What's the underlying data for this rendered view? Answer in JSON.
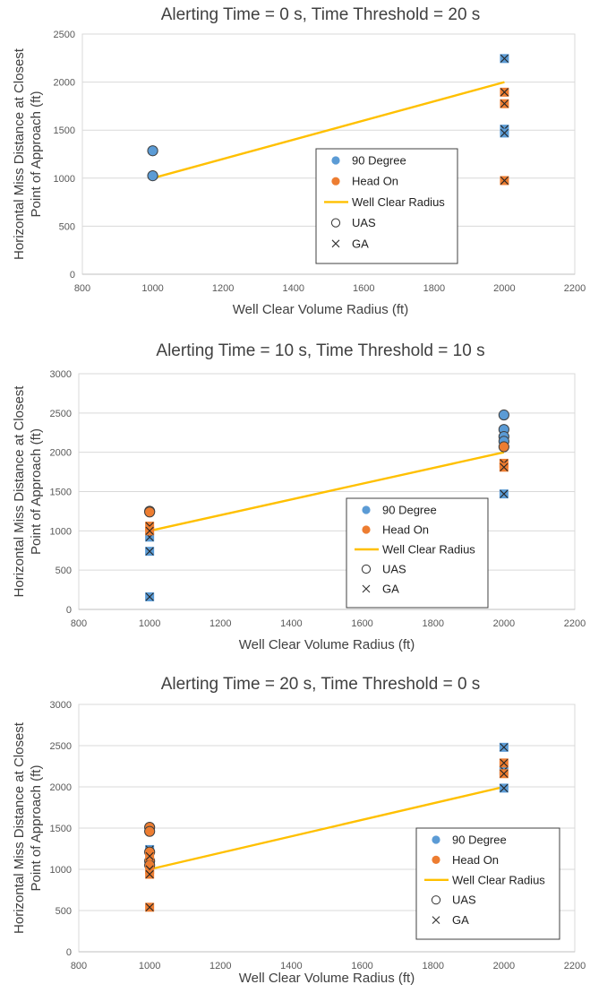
{
  "colors": {
    "ninety_degree": "#5B9BD5",
    "head_on": "#ED7D31",
    "well_clear": "#FFC000",
    "grid": "#D9D9D9",
    "marker_edge": "#404040"
  },
  "chart_data": [
    {
      "type": "scatter",
      "title": "Alerting Time = 0 s, Time Threshold = 20 s",
      "xlabel": "Well Clear Volume Radius (ft)",
      "ylabel": [
        "Horizontal Miss Distance at Closest",
        "Point of Approach (ft)"
      ],
      "xlim": [
        800,
        2200
      ],
      "ylim": [
        0,
        2500
      ],
      "xticks": [
        800,
        1000,
        1200,
        1400,
        1600,
        1800,
        2000,
        2200
      ],
      "yticks": [
        0,
        500,
        1000,
        1500,
        2000,
        2500
      ],
      "grid": true,
      "legend_position": "center-right",
      "legend": [
        "90 Degree",
        "Head On",
        "Well Clear Radius",
        "UAS",
        "GA"
      ],
      "series": [
        {
          "name": "90 Degree",
          "marker": "UAS",
          "points": [
            [
              1000,
              1285
            ],
            [
              1000,
              1025
            ]
          ]
        },
        {
          "name": "90 Degree",
          "marker": "GA",
          "points": [
            [
              2000,
              2245
            ],
            [
              2000,
              1510
            ],
            [
              2000,
              1470
            ]
          ]
        },
        {
          "name": "Head On",
          "marker": "GA",
          "points": [
            [
              2000,
              1895
            ],
            [
              2000,
              1775
            ],
            [
              2000,
              975
            ]
          ]
        },
        {
          "name": "Well Clear Radius",
          "line": [
            [
              1000,
              1000
            ],
            [
              2000,
              2000
            ]
          ]
        }
      ]
    },
    {
      "type": "scatter",
      "title": "Alerting Time = 10 s, Time Threshold = 10 s",
      "xlabel": "Well Clear Volume Radius (ft)",
      "ylabel": [
        "Horizontal Miss Distance at Closest",
        "Point of Approach (ft)"
      ],
      "xlim": [
        800,
        2200
      ],
      "ylim": [
        0,
        3000
      ],
      "xticks": [
        800,
        1000,
        1200,
        1400,
        1600,
        1800,
        2000,
        2200
      ],
      "yticks": [
        0,
        500,
        1000,
        1500,
        2000,
        2500,
        3000
      ],
      "grid": true,
      "legend_position": "center-right",
      "legend": [
        "90 Degree",
        "Head On",
        "Well Clear Radius",
        "UAS",
        "GA"
      ],
      "series": [
        {
          "name": "90 Degree",
          "marker": "UAS",
          "points": [
            [
              2000,
              2475
            ],
            [
              2000,
              2290
            ],
            [
              2000,
              2200
            ],
            [
              2000,
              2140
            ]
          ]
        },
        {
          "name": "90 Degree",
          "marker": "GA",
          "points": [
            [
              1000,
              920
            ],
            [
              1000,
              740
            ],
            [
              1000,
              160
            ],
            [
              2000,
              1470
            ]
          ]
        },
        {
          "name": "Head On",
          "marker": "UAS",
          "points": [
            [
              1000,
              1250
            ],
            [
              1000,
              1240
            ],
            [
              2000,
              2070
            ]
          ]
        },
        {
          "name": "Head On",
          "marker": "GA",
          "points": [
            [
              1000,
              1060
            ],
            [
              1000,
              1000
            ],
            [
              2000,
              1860
            ],
            [
              2000,
              1810
            ]
          ]
        },
        {
          "name": "Well Clear Radius",
          "line": [
            [
              1000,
              1000
            ],
            [
              2000,
              2000
            ]
          ]
        }
      ]
    },
    {
      "type": "scatter",
      "title": "Alerting Time = 20 s, Time Threshold = 0 s",
      "xlabel": "Well Clear Volume Radius (ft)",
      "ylabel": [
        "Horizontal Miss Distance at Closest",
        "Point of Approach (ft)"
      ],
      "xlim": [
        800,
        2200
      ],
      "ylim": [
        0,
        3000
      ],
      "xticks": [
        800,
        1000,
        1200,
        1400,
        1600,
        1800,
        2000,
        2200
      ],
      "yticks": [
        0,
        500,
        1000,
        1500,
        2000,
        2500,
        3000
      ],
      "grid": true,
      "legend_position": "right",
      "legend": [
        "90 Degree",
        "Head On",
        "Well Clear Radius",
        "UAS",
        "GA"
      ],
      "series": [
        {
          "name": "90 Degree",
          "marker": "GA",
          "points": [
            [
              1000,
              1240
            ],
            [
              2000,
              2480
            ],
            [
              2000,
              2200
            ],
            [
              2000,
              1985
            ]
          ]
        },
        {
          "name": "Head On",
          "marker": "UAS",
          "points": [
            [
              1000,
              1510
            ],
            [
              1000,
              1460
            ],
            [
              1000,
              1210
            ],
            [
              1000,
              1100
            ],
            [
              1000,
              1050
            ]
          ]
        },
        {
          "name": "Head On",
          "marker": "GA",
          "points": [
            [
              1000,
              1160
            ],
            [
              1000,
              1000
            ],
            [
              1000,
              940
            ],
            [
              1000,
              540
            ],
            [
              2000,
              2290
            ],
            [
              2000,
              2160
            ]
          ]
        },
        {
          "name": "Well Clear Radius",
          "line": [
            [
              1000,
              1000
            ],
            [
              2000,
              2000
            ]
          ]
        }
      ]
    }
  ]
}
